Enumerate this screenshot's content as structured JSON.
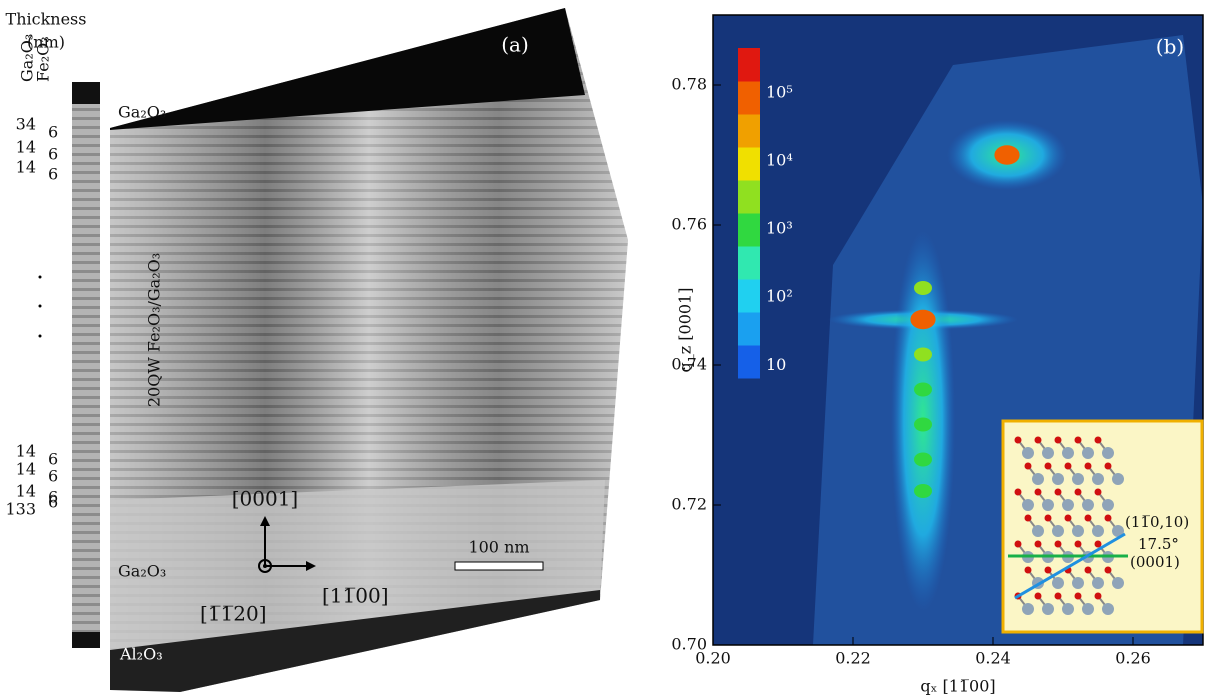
{
  "panel_a": {
    "label": "(a)",
    "thickness_title": "Thickness",
    "thickness_unit": "(nm)",
    "column_heads": [
      "Ga₂O₃",
      "Fe₂O₃"
    ],
    "thickness_top": [
      [
        34,
        6
      ],
      [
        14,
        6
      ],
      [
        14,
        6
      ]
    ],
    "thickness_bottom": [
      [
        14,
        6
      ],
      [
        14,
        6
      ],
      [
        14,
        6
      ],
      [
        133,
        6
      ]
    ],
    "layers": {
      "top": "Ga₂O₃",
      "qw": "20QW Fe₂O₃/Ga₂O₃",
      "bottom": "Ga₂O₃",
      "substrate": "Al₂O₃"
    },
    "directions": {
      "up": "[0001]",
      "right": "[11̅00]",
      "view": "[1̅1̅20]"
    },
    "scale_bar": "100 nm"
  },
  "chart_data": {
    "type": "scatter",
    "panel_label": "(b)",
    "xlabel": "qₓ [11̅00]",
    "ylabel": "q_z [0001]",
    "xlim": [
      0.2,
      0.27
    ],
    "xticks": [
      {
        "value": 0.2,
        "label": "0.20"
      },
      {
        "value": 0.22,
        "label": "0.22"
      },
      {
        "value": 0.24,
        "label": "0.24"
      },
      {
        "value": 0.26,
        "label": "0.26"
      }
    ],
    "ylim": [
      0.7,
      0.79
    ],
    "yticks": [
      {
        "value": 0.7,
        "label": "0.70"
      },
      {
        "value": 0.72,
        "label": "0.72"
      },
      {
        "value": 0.74,
        "label": "0.74"
      },
      {
        "value": 0.76,
        "label": "0.76"
      },
      {
        "value": 0.78,
        "label": "0.78"
      }
    ],
    "x": [
      0.23,
      0.23,
      0.23,
      0.23,
      0.23,
      0.23,
      0.23,
      0.242
    ],
    "values": [
      0.7465,
      0.751,
      0.7415,
      0.7365,
      0.7315,
      0.7265,
      0.722,
      0.77
    ],
    "intensity": [
      100000,
      3000,
      3000,
      1000,
      1000,
      1000,
      600,
      100000
    ],
    "zscale": "log",
    "zlim": [
      6.5,
      460000
    ],
    "zticks": [
      {
        "value": 10,
        "label": "10"
      },
      {
        "value": 100,
        "label": "10²"
      },
      {
        "value": 1000,
        "label": "10³"
      },
      {
        "value": 10000,
        "label": "10⁴"
      },
      {
        "value": 100000,
        "label": "10⁵"
      }
    ],
    "colorscale": [
      "#1560e8",
      "#1aa0f0",
      "#20d0f0",
      "#30e8b0",
      "#30d840",
      "#90e020",
      "#f0e000",
      "#f0a000",
      "#f06000",
      "#e01810"
    ],
    "inset": {
      "plane": "(11̅0,10)",
      "angle": "17.5°",
      "base": "(0001)"
    }
  }
}
